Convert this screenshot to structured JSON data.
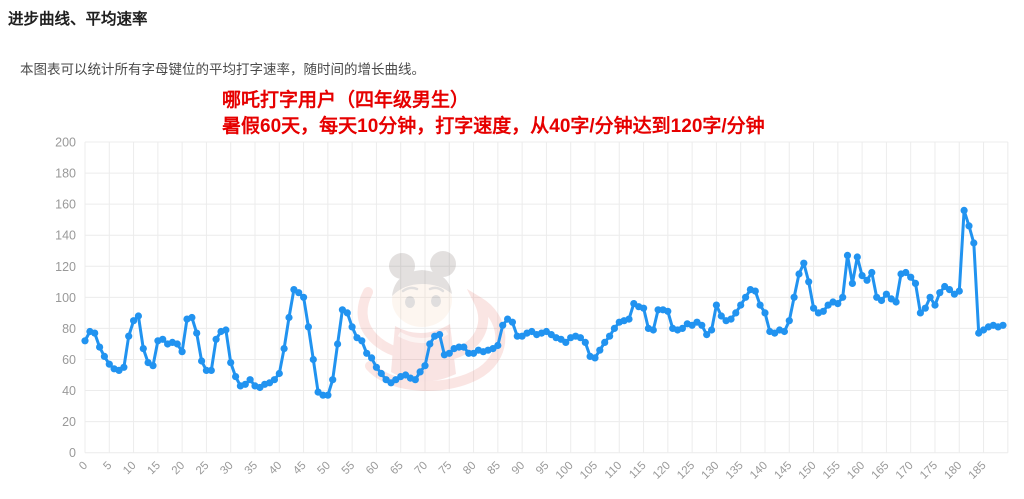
{
  "page": {
    "title": "进步曲线、平均速率",
    "subtitle": "本图表可以统计所有字母键位的平均打字速率，随时间的增长曲线。"
  },
  "annotation": {
    "line1": "哪吒打字用户（四年级男生）",
    "line2": "暑假60天，每天10分钟，打字速度，从40字/分钟达到120字/分钟",
    "color": "#e60000"
  },
  "chart_data": {
    "type": "line",
    "title": "",
    "xlabel": "",
    "ylabel": "",
    "x_start": 0,
    "x_step": 1,
    "values": [
      72,
      78,
      77,
      68,
      62,
      57,
      54,
      53,
      55,
      75,
      85,
      88,
      67,
      58,
      56,
      72,
      73,
      70,
      71,
      70,
      65,
      86,
      87,
      77,
      59,
      53,
      53,
      73,
      78,
      79,
      58,
      49,
      43,
      44,
      47,
      43,
      42,
      44,
      45,
      47,
      51,
      67,
      87,
      105,
      103,
      100,
      81,
      60,
      39,
      37,
      37,
      47,
      70,
      92,
      90,
      81,
      74,
      72,
      64,
      61,
      55,
      51,
      47,
      45,
      47,
      49,
      50,
      48,
      47,
      52,
      56,
      70,
      75,
      76,
      63,
      64,
      67,
      68,
      68,
      64,
      64,
      66,
      65,
      66,
      67,
      69,
      82,
      86,
      84,
      75,
      75,
      77,
      78,
      76,
      77,
      78,
      76,
      74,
      73,
      71,
      74,
      75,
      74,
      71,
      62,
      61,
      66,
      71,
      75,
      80,
      84,
      85,
      86,
      96,
      94,
      93,
      80,
      79,
      92,
      92,
      91,
      80,
      79,
      80,
      83,
      82,
      84,
      82,
      76,
      79,
      95,
      88,
      85,
      86,
      90,
      95,
      100,
      105,
      104,
      95,
      90,
      78,
      77,
      79,
      78,
      85,
      100,
      115,
      122,
      110,
      93,
      90,
      91,
      95,
      97,
      96,
      100,
      127,
      109,
      126,
      114,
      111,
      116,
      100,
      98,
      102,
      99,
      97,
      115,
      116,
      113,
      109,
      90,
      93,
      100,
      95,
      103,
      107,
      105,
      102,
      104,
      156,
      146,
      135,
      77,
      79,
      81,
      82,
      81,
      82
    ],
    "x_tick_labels": [
      "0",
      "5",
      "10",
      "15",
      "20",
      "25",
      "30",
      "35",
      "40",
      "45",
      "50",
      "55",
      "60",
      "65",
      "70",
      "75",
      "80",
      "85",
      "90",
      "95",
      "100",
      "105",
      "110",
      "115",
      "120",
      "125",
      "130",
      "135",
      "140",
      "145",
      "150",
      "155",
      "160",
      "165",
      "170",
      "175",
      "180",
      "185"
    ],
    "x_tick_interval": 5,
    "x_grid_max": 190,
    "y_ticks": [
      0,
      20,
      40,
      60,
      80,
      100,
      120,
      140,
      160,
      180,
      200
    ],
    "ylim": [
      0,
      200
    ],
    "grid": true,
    "legend": false,
    "line_color": "#2193f0",
    "grid_color": "#ececec",
    "tick_color": "#999999",
    "point_style": "circle"
  }
}
